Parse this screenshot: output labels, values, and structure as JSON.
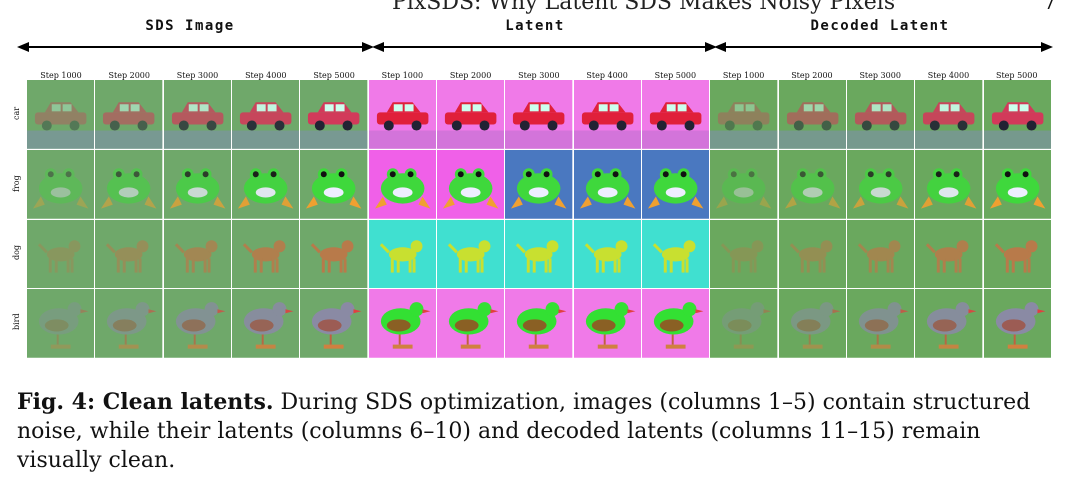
{
  "header": {
    "running_title": "PixSDS: Why Latent SDS Makes Noisy Pixels",
    "page_number": "7"
  },
  "figure": {
    "groups": [
      {
        "label": "SDS Image"
      },
      {
        "label": "Latent"
      },
      {
        "label": "Decoded Latent"
      }
    ],
    "steps": [
      "Step 1000",
      "Step 2000",
      "Step 3000",
      "Step 4000",
      "Step 5000"
    ],
    "rows": [
      "car",
      "frog",
      "dog",
      "bird"
    ],
    "colors": {
      "sds_bg": "#6fa86a",
      "latent_bg": "#f07ae8",
      "decoded_bg": "#6aa85e",
      "car_red": "#d23a5a",
      "frog_green": "#3fd83c",
      "dog_brown": "#b87a4a",
      "bird_gray": "#8a8aa4",
      "bird_green": "#33e033"
    }
  },
  "caption": {
    "label": "Fig. 4: Clean latents.",
    "text": " During SDS optimization, images (columns 1–5) contain structured noise, while their latents (columns 6–10) and decoded latents (columns 11–15) remain visually clean."
  }
}
